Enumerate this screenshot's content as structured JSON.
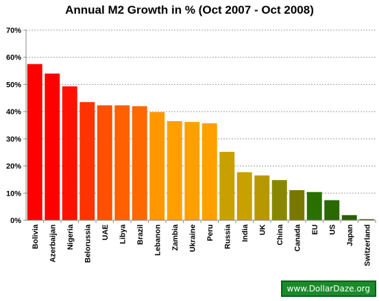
{
  "chart_data": {
    "type": "bar",
    "title": "Annual M2 Growth in % (Oct 2007 - Oct 2008)",
    "xlabel": "",
    "ylabel": "",
    "ylim": [
      0,
      70
    ],
    "y_ticks": [
      "0%",
      "10%",
      "20%",
      "30%",
      "40%",
      "50%",
      "60%",
      "70%"
    ],
    "grid": true,
    "legend": "none",
    "categories": [
      "Bolivia",
      "Azerbaijan",
      "Nigeria",
      "Belorussia",
      "UAE",
      "Libya",
      "Brazil",
      "Lebanon",
      "Zambia",
      "Ukraine",
      "Peru",
      "Russia",
      "India",
      "UK",
      "China",
      "Canada",
      "EU",
      "US",
      "Japan",
      "Switzerland"
    ],
    "values": [
      57.5,
      54,
      49.3,
      43.5,
      42.3,
      42.3,
      42,
      39.8,
      36.5,
      36.2,
      35.7,
      25.2,
      17.7,
      16.5,
      14.8,
      11.1,
      10.4,
      7.4,
      1.9,
      0.4
    ],
    "colors": [
      "#ff0000",
      "#ff0000",
      "#ff1100",
      "#ff3300",
      "#ff5000",
      "#ff6000",
      "#ff6800",
      "#ff9800",
      "#ffa000",
      "#ffa000",
      "#ffa000",
      "#c8a000",
      "#c8a000",
      "#b89800",
      "#888800",
      "#787800",
      "#2a7000",
      "#2a6800",
      "#2a6000",
      "#2a6000"
    ]
  },
  "watermark": "www.DollarDaze.org"
}
